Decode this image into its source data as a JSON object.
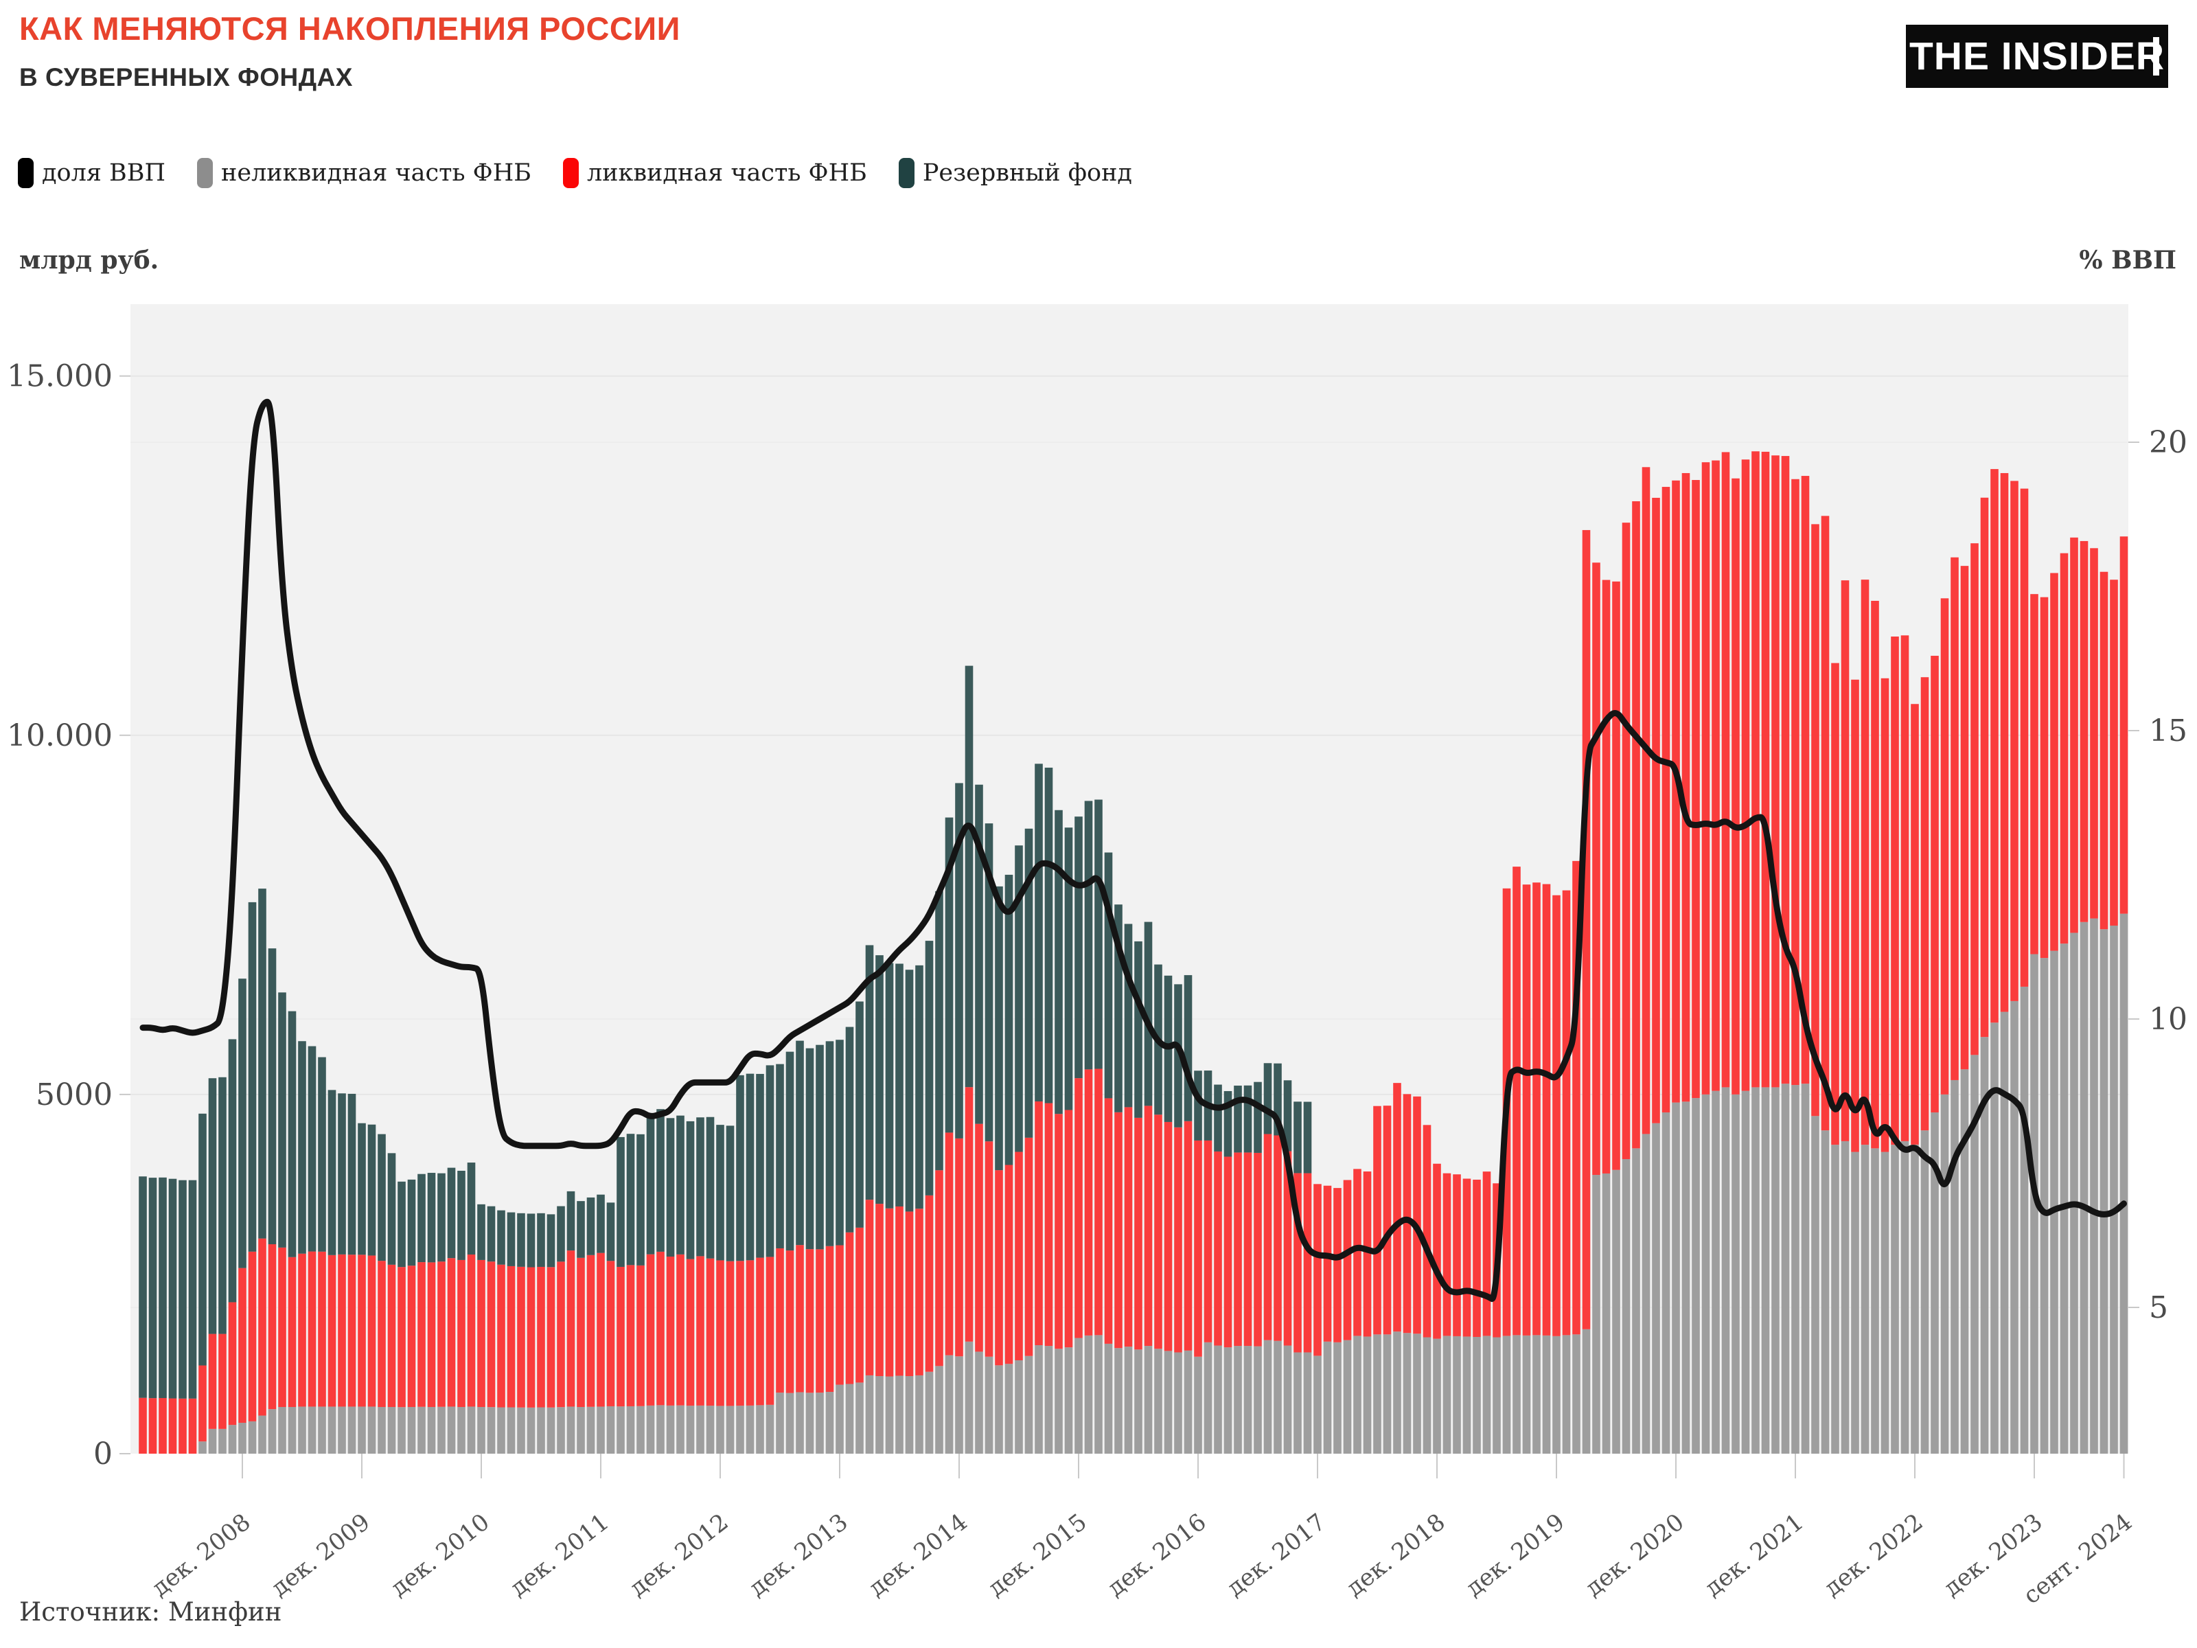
{
  "header": {
    "title": "КАК МЕНЯЮТСЯ НАКОПЛЕНИЯ РОССИИ",
    "subtitle": "В СУВЕРЕННЫХ ФОНДАХ",
    "logo": "THE INSIDER"
  },
  "legend": {
    "items": [
      {
        "label": "доля ВВП",
        "color": "#000000"
      },
      {
        "label": "неликвидная часть ФНБ",
        "color": "#8d8d8d"
      },
      {
        "label": "ликвидная часть ФНБ",
        "color": "#fb0606"
      },
      {
        "label": "Резервный фонд",
        "color": "#204242"
      }
    ]
  },
  "axes": {
    "left_title": "млрд руб.",
    "right_title": "% ВВП",
    "left_ticks": [
      {
        "label": "0",
        "value": 0
      },
      {
        "label": "5000",
        "value": 5000
      },
      {
        "label": "10.000",
        "value": 10000
      },
      {
        "label": "15.000",
        "value": 15000
      }
    ],
    "right_ticks": [
      {
        "label": "5",
        "value": 5
      },
      {
        "label": "10",
        "value": 10
      },
      {
        "label": "15",
        "value": 15
      },
      {
        "label": "20",
        "value": 20
      }
    ],
    "x_ticks": [
      {
        "label": "дек. 2008",
        "month_index": 10
      },
      {
        "label": "дек. 2009",
        "month_index": 22
      },
      {
        "label": "дек. 2010",
        "month_index": 34
      },
      {
        "label": "дек. 2011",
        "month_index": 46
      },
      {
        "label": "дек. 2012",
        "month_index": 58
      },
      {
        "label": "дек. 2013",
        "month_index": 70
      },
      {
        "label": "дек. 2014",
        "month_index": 82
      },
      {
        "label": "дек. 2015",
        "month_index": 94
      },
      {
        "label": "дек. 2016",
        "month_index": 106
      },
      {
        "label": "дек. 2017",
        "month_index": 118
      },
      {
        "label": "дек. 2018",
        "month_index": 130
      },
      {
        "label": "дек. 2019",
        "month_index": 142
      },
      {
        "label": "дек. 2020",
        "month_index": 154
      },
      {
        "label": "дек. 2021",
        "month_index": 166
      },
      {
        "label": "дек. 2022",
        "month_index": 178
      },
      {
        "label": "дек. 2023",
        "month_index": 190
      },
      {
        "label": "сент. 2024",
        "month_index": 199
      }
    ]
  },
  "footer": {
    "source": "Источник: Минфин"
  },
  "chart_data": {
    "type": "bar",
    "subtype": "monthly stacked bars (млрд руб., left axis) + line (% ВВП, right axis)",
    "title": "КАК МЕНЯЮТСЯ НАКОПЛЕНИЯ РОССИИ В СУВЕРЕННЫХ ФОНДАХ",
    "xlabel": "",
    "ylabel": "млрд руб.",
    "ylabel_right": "% ВВП",
    "start_month": "2008-02",
    "end_month": "2024-09",
    "months": 200,
    "left_ylim": [
      0,
      16000
    ],
    "right_ylim": [
      2.5,
      22.4
    ],
    "grid": true,
    "legend_position": "top-left",
    "colors": {
      "reserve_fund_bar": "#3b5a5a",
      "nwf_liquid_bar": "#fa3c3c",
      "nwf_illiquid_bar": "#9e9e9e",
      "gdp_line": "#141414",
      "plot_bg": "#f2f2f2",
      "gridline_money": "#e6e6e6",
      "gridline_pct": "#ededed",
      "tick_text": "#4b4b4b",
      "x_tick_text": "#555555"
    },
    "nwf_total_note": "ликвидная часть ФНБ = nwf_total - values of 'неликвидная часть ФНБ'; Резервный фонд stacked on top; units млрд руб.",
    "nwf_total": [
      777,
      773,
      774,
      769,
      767,
      767,
      1228,
      1667,
      1667,
      2108,
      2584,
      2812,
      2995,
      2915,
      2869,
      2736,
      2784,
      2814,
      2812,
      2764,
      2773,
      2770,
      2769,
      2758,
      2684,
      2630,
      2598,
      2617,
      2666,
      2663,
      2674,
      2722,
      2696,
      2772,
      2696,
      2674,
      2631,
      2610,
      2601,
      2595,
      2600,
      2597,
      2673,
      2828,
      2726,
      2764,
      2794,
      2683,
      2600,
      2625,
      2620,
      2775,
      2811,
      2743,
      2773,
      2709,
      2749,
      2717,
      2691,
      2679,
      2683,
      2692,
      2728,
      2739,
      2858,
      2828,
      2904,
      2847,
      2845,
      2889,
      2901,
      3080,
      3146,
      3535,
      3478,
      3414,
      3441,
      3370,
      3410,
      3595,
      3945,
      4469,
      4388,
      5102,
      4591,
      4347,
      3946,
      4019,
      4201,
      4398,
      4903,
      4879,
      4729,
      4784,
      5227,
      5349,
      5357,
      4947,
      4752,
      4823,
      4675,
      4842,
      4719,
      4617,
      4542,
      4628,
      4359,
      4359,
      4206,
      4134,
      4192,
      4192,
      4187,
      4449,
      4430,
      4210,
      3905,
      3904,
      3753,
      3730,
      3698,
      3809,
      3963,
      3928,
      4839,
      4844,
      5160,
      5005,
      4972,
      4575,
      4036,
      3903,
      3888,
      3828,
      3814,
      3927,
      3763,
      7868,
      8171,
      7922,
      7950,
      7928,
      7773,
      7841,
      8250,
      12856,
      12403,
      12162,
      12140,
      12959,
      13257,
      13732,
      13305,
      13457,
      13546,
      13649,
      13553,
      13800,
      13825,
      13941,
      13575,
      13838,
      13952,
      13946,
      13895,
      13887,
      13565,
      13610,
      12938,
      13053,
      11005,
      12156,
      10774,
      12166,
      11871,
      10793,
      11374,
      11390,
      10435,
      10808,
      11106,
      11906,
      12476,
      12357,
      12672,
      13307,
      13705,
      13649,
      13540,
      13433,
      11965,
      11922,
      12258,
      12534,
      12752,
      12703,
      12604,
      12275,
      12165,
      12767
    ],
    "series": [
      {
        "name": "доля ВВП",
        "type": "line",
        "axis": "right",
        "color": "#141414",
        "values": [
          9.85,
          9.85,
          9.8,
          9.85,
          9.8,
          9.75,
          9.8,
          9.85,
          10.0,
          12.0,
          16.5,
          20.0,
          20.7,
          20.7,
          17.4,
          16.0,
          15.2,
          14.6,
          14.2,
          13.9,
          13.6,
          13.4,
          13.2,
          13.0,
          12.8,
          12.5,
          12.1,
          11.7,
          11.3,
          11.1,
          11.0,
          10.95,
          10.9,
          10.9,
          10.85,
          9.2,
          8.0,
          7.85,
          7.8,
          7.8,
          7.8,
          7.8,
          7.8,
          7.85,
          7.8,
          7.8,
          7.8,
          7.85,
          8.1,
          8.4,
          8.4,
          8.3,
          8.35,
          8.4,
          8.7,
          8.9,
          8.9,
          8.9,
          8.9,
          8.9,
          9.15,
          9.4,
          9.4,
          9.35,
          9.5,
          9.7,
          9.8,
          9.9,
          10.0,
          10.1,
          10.2,
          10.3,
          10.5,
          10.7,
          10.8,
          11.0,
          11.2,
          11.35,
          11.55,
          11.8,
          12.2,
          12.6,
          13.1,
          13.45,
          13.0,
          12.5,
          12.0,
          11.8,
          12.1,
          12.4,
          12.7,
          12.7,
          12.6,
          12.4,
          12.3,
          12.35,
          12.5,
          11.9,
          11.25,
          10.7,
          10.3,
          9.9,
          9.6,
          9.5,
          9.6,
          9.0,
          8.6,
          8.5,
          8.45,
          8.5,
          8.6,
          8.6,
          8.5,
          8.4,
          8.3,
          7.6,
          6.4,
          6.0,
          5.9,
          5.9,
          5.85,
          5.95,
          6.05,
          6.0,
          5.95,
          6.25,
          6.45,
          6.55,
          6.4,
          6.0,
          5.6,
          5.3,
          5.25,
          5.3,
          5.25,
          5.2,
          5.1,
          9.0,
          9.15,
          9.05,
          9.1,
          9.05,
          8.95,
          9.3,
          9.8,
          14.6,
          14.9,
          15.2,
          15.35,
          15.1,
          14.9,
          14.7,
          14.5,
          14.45,
          14.4,
          13.4,
          13.35,
          13.4,
          13.35,
          13.45,
          13.3,
          13.35,
          13.5,
          13.5,
          12.0,
          11.2,
          10.9,
          9.9,
          9.3,
          8.9,
          8.3,
          8.8,
          8.3,
          8.75,
          7.9,
          8.2,
          7.9,
          7.7,
          7.8,
          7.6,
          7.5,
          7.0,
          7.6,
          7.9,
          8.2,
          8.6,
          8.8,
          8.7,
          8.6,
          8.4,
          6.9,
          6.6,
          6.7,
          6.75,
          6.8,
          6.75,
          6.65,
          6.6,
          6.65,
          6.8
        ]
      },
      {
        "name": "неликвидная часть ФНБ",
        "type": "bar",
        "stack_order": 0,
        "axis": "left",
        "color": "#9e9e9e",
        "values": [
          0,
          0,
          0,
          0,
          0,
          0,
          170,
          345,
          345,
          400,
          430,
          450,
          530,
          620,
          650,
          650,
          655,
          655,
          655,
          655,
          655,
          655,
          655,
          655,
          650,
          650,
          648,
          650,
          652,
          650,
          652,
          655,
          650,
          655,
          650,
          648,
          645,
          645,
          643,
          642,
          645,
          643,
          648,
          655,
          650,
          652,
          655,
          660,
          658,
          660,
          662,
          670,
          675,
          670,
          672,
          668,
          670,
          668,
          665,
          665,
          668,
          670,
          675,
          680,
          850,
          845,
          855,
          848,
          850,
          860,
          960,
          970,
          990,
          1090,
          1080,
          1075,
          1085,
          1080,
          1090,
          1140,
          1220,
          1370,
          1355,
          1560,
          1420,
          1350,
          1230,
          1250,
          1300,
          1360,
          1510,
          1500,
          1460,
          1480,
          1610,
          1645,
          1650,
          1530,
          1470,
          1490,
          1450,
          1500,
          1460,
          1430,
          1410,
          1435,
          1350,
          1550,
          1505,
          1480,
          1500,
          1500,
          1495,
          1580,
          1570,
          1505,
          1410,
          1410,
          1363,
          1560,
          1550,
          1580,
          1640,
          1630,
          1660,
          1660,
          1700,
          1680,
          1670,
          1620,
          1600,
          1640,
          1635,
          1630,
          1625,
          1640,
          1620,
          1640,
          1650,
          1645,
          1650,
          1645,
          1636,
          1650,
          1660,
          1732,
          3880,
          3900,
          3950,
          4100,
          4250,
          4450,
          4600,
          4750,
          4888,
          4900,
          4950,
          5000,
          5050,
          5100,
          5000,
          5050,
          5100,
          5100,
          5100,
          5150,
          5132,
          5150,
          4700,
          4500,
          4300,
          4350,
          4200,
          4300,
          4250,
          4200,
          4300,
          4350,
          4302,
          4500,
          4750,
          5000,
          5200,
          5350,
          5550,
          5800,
          6000,
          6150,
          6300,
          6500,
          6953,
          6900,
          7000,
          7100,
          7250,
          7400,
          7450,
          7300,
          7350,
          7516
        ]
      },
      {
        "name": "ликвидная часть ФНБ",
        "type": "bar",
        "stack_order": 1,
        "axis": "left",
        "color": "#fa3c3c",
        "derived": "nwf_total minus 'неликвидная часть ФНБ'"
      },
      {
        "name": "Резервный фонд",
        "type": "bar",
        "stack_order": 2,
        "axis": "left",
        "color": "#3b5a5a",
        "pad_with_zeros_to_months": true,
        "values": [
          3082,
          3068,
          3070,
          3057,
          3040,
          3040,
          3505,
          3559,
          3573,
          3661,
          4028,
          4864,
          4870,
          4118,
          3551,
          3423,
          2958,
          2858,
          2707,
          2298,
          2242,
          2239,
          1831,
          1823,
          1764,
          1553,
          1189,
          1198,
          1227,
          1246,
          1229,
          1258,
          1242,
          1280,
          775,
          770,
          756,
          749,
          746,
          746,
          747,
          735,
          772,
          824,
          790,
          802,
          812,
          812,
          1807,
          1827,
          1826,
          1927,
          1985,
          1928,
          1933,
          1918,
          1932,
          1969,
          1886,
          1886,
          2585,
          2597,
          2558,
          2667,
          2565,
          2767,
          2844,
          2796,
          2845,
          2852,
          2860,
          2860,
          3148,
          3543,
          3460,
          3415,
          3379,
          3366,
          3387,
          3544,
          3885,
          4386,
          4946,
          5865,
          4721,
          4426,
          3950,
          4039,
          4265,
          4302,
          4700,
          4670,
          4229,
          3931,
          3641,
          3737,
          3747,
          3421,
          2892,
          2551,
          2456,
          2560,
          2090,
          2037,
          1992,
          2033,
          972,
          974,
          931,
          913,
          931,
          933,
          987,
          987,
          1002,
          987,
          995,
          994
        ]
      }
    ]
  }
}
